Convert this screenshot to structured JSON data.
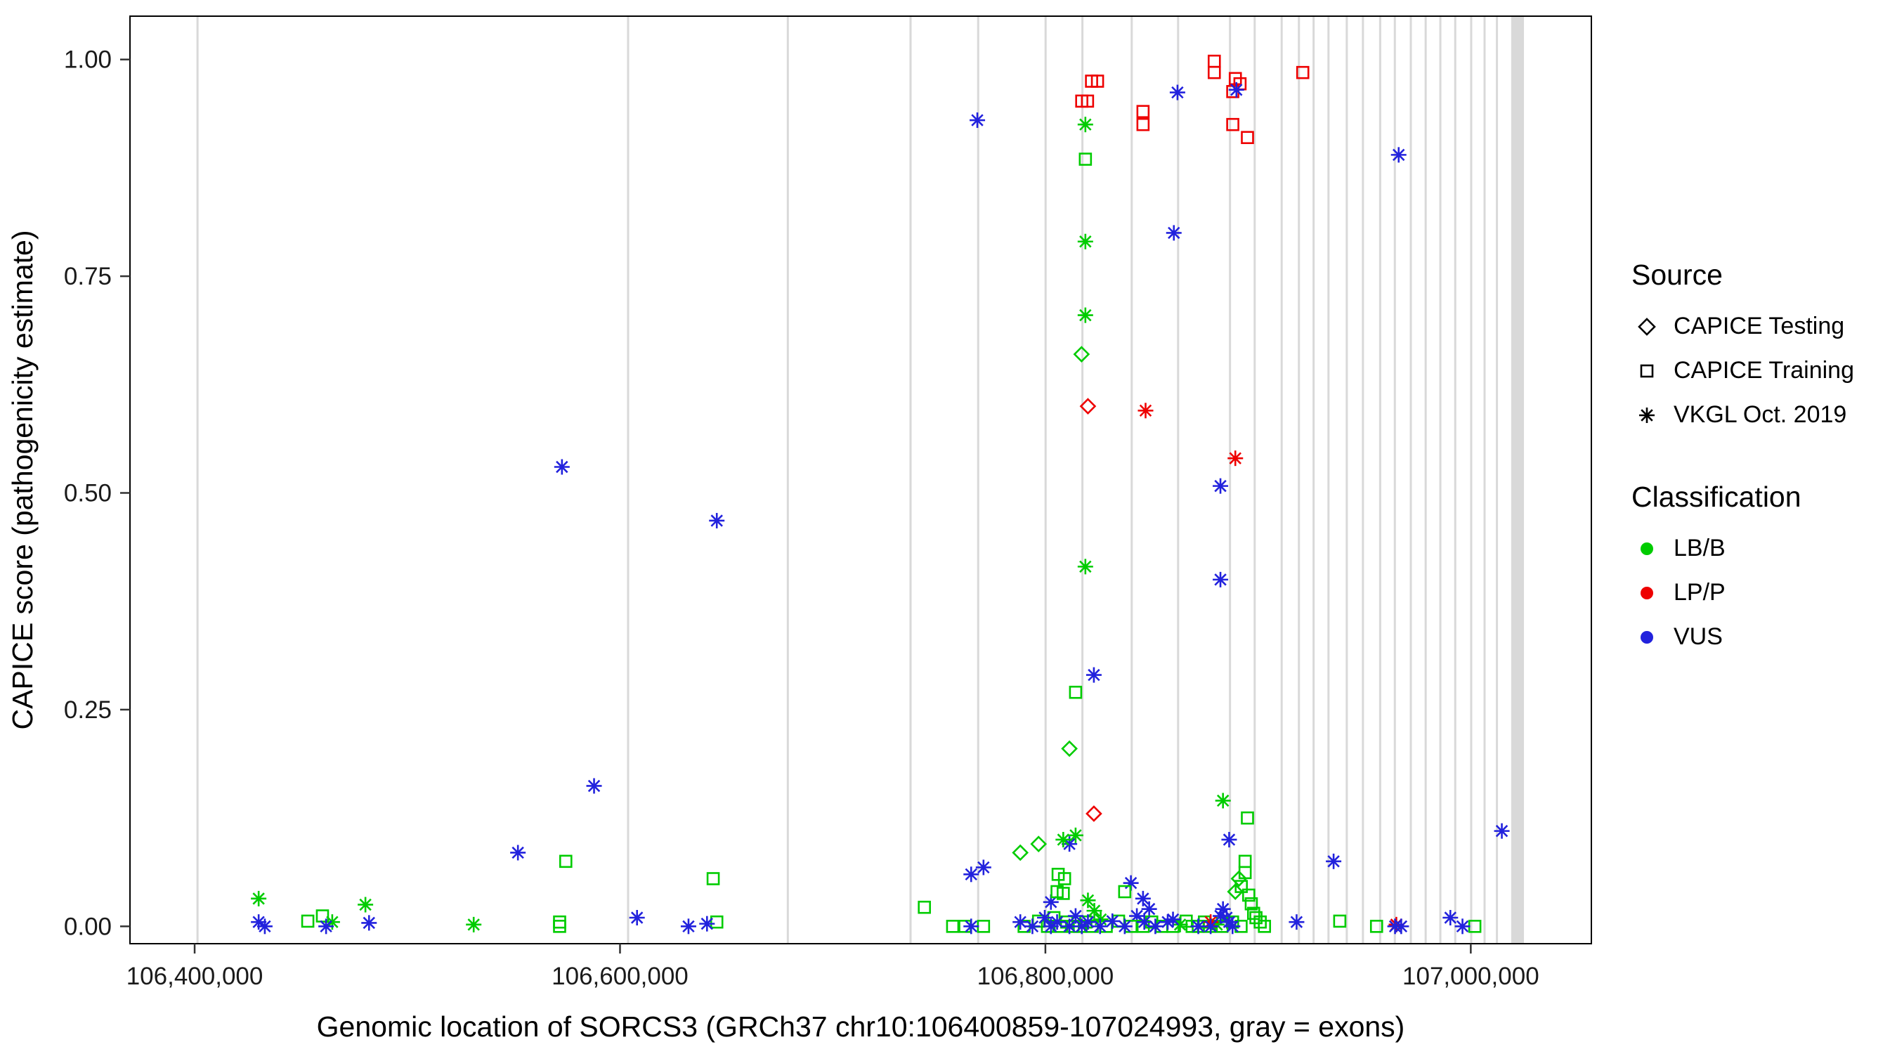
{
  "figure": {
    "xlabel": "Genomic location of SORCS3 (GRCh37 chr10:106400859-107024993, gray = exons)",
    "ylabel": "CAPICE score (pathogenicity estimate)"
  },
  "legend": {
    "source_title": "Source",
    "source_items": [
      {
        "label": "CAPICE Testing",
        "shape": "diamond"
      },
      {
        "label": "CAPICE Training",
        "shape": "square"
      },
      {
        "label": "VKGL Oct. 2019",
        "shape": "asterisk"
      }
    ],
    "classification_title": "Classification",
    "classification_items": [
      {
        "label": "LB/B",
        "color": "#00CC00"
      },
      {
        "label": "LP/P",
        "color": "#EE0000"
      },
      {
        "label": "VUS",
        "color": "#2222DD"
      }
    ]
  },
  "chart_data": {
    "type": "scatter",
    "title": "",
    "xlabel": "Genomic location of SORCS3 (GRCh37 chr10:106400859-107024993, gray = exons)",
    "ylabel": "CAPICE score (pathogenicity estimate)",
    "xlim": [
      106369600,
      107056700
    ],
    "ylim": [
      -0.02,
      1.05
    ],
    "x_ticks": [
      {
        "value": 106400000,
        "label": "106,400,000"
      },
      {
        "value": 106600000,
        "label": "106,600,000"
      },
      {
        "value": 106800000,
        "label": "106,800,000"
      },
      {
        "value": 107000000,
        "label": "107,000,000"
      }
    ],
    "y_ticks": [
      {
        "value": 0.0,
        "label": "0.00"
      },
      {
        "value": 0.25,
        "label": "0.25"
      },
      {
        "value": 0.5,
        "label": "0.50"
      },
      {
        "value": 0.75,
        "label": "0.75"
      },
      {
        "value": 1.0,
        "label": "1.00"
      }
    ],
    "exon_color": "#d9d9d9",
    "exons": [
      [
        106400859,
        106401200
      ],
      [
        106603300,
        106603600
      ],
      [
        106678400,
        106678600
      ],
      [
        106736100,
        106736400
      ],
      [
        106767900,
        106768200
      ],
      [
        106799600,
        106799900
      ],
      [
        106816900,
        106817200
      ],
      [
        106840100,
        106840400
      ],
      [
        106861900,
        106862200
      ],
      [
        106886300,
        106886600
      ],
      [
        106897900,
        106898200
      ],
      [
        106910600,
        106910900
      ],
      [
        106918700,
        106919000
      ],
      [
        106925600,
        106925900
      ],
      [
        106932600,
        106932900
      ],
      [
        106941200,
        106941500
      ],
      [
        106948800,
        106949100
      ],
      [
        106956900,
        106957200
      ],
      [
        106963800,
        106964100
      ],
      [
        106971300,
        106971600
      ],
      [
        106978300,
        106978600
      ],
      [
        106985200,
        106985500
      ],
      [
        106992200,
        106992500
      ],
      [
        106999700,
        107000000
      ],
      [
        107006000,
        107006300
      ],
      [
        107011800,
        107012100
      ],
      [
        107019000,
        107024993
      ]
    ],
    "source_names": {
      "T": "CAPICE Testing",
      "R": "CAPICE Training",
      "V": "VKGL Oct. 2019"
    },
    "source_shapes": {
      "T": "diamond",
      "R": "square",
      "V": "asterisk"
    },
    "class_names": {
      "B": "LB/B",
      "P": "LP/P",
      "U": "VUS"
    },
    "class_colors": {
      "B": "#00CC00",
      "P": "#EE0000",
      "U": "#2222DD"
    },
    "point_format": [
      "x_genomic",
      "capice_score",
      "source_code",
      "class_code"
    ],
    "points": [
      [
        106821700,
        0.975,
        "R",
        "P"
      ],
      [
        106824500,
        0.975,
        "R",
        "P"
      ],
      [
        106817100,
        0.952,
        "R",
        "P"
      ],
      [
        106819800,
        0.952,
        "R",
        "P"
      ],
      [
        106845900,
        0.94,
        "R",
        "P"
      ],
      [
        106845900,
        0.925,
        "R",
        "P"
      ],
      [
        106879400,
        0.998,
        "R",
        "P"
      ],
      [
        106879400,
        0.985,
        "R",
        "P"
      ],
      [
        106889300,
        0.978,
        "R",
        "P"
      ],
      [
        106891500,
        0.972,
        "R",
        "P"
      ],
      [
        106888100,
        0.963,
        "R",
        "P"
      ],
      [
        106888100,
        0.925,
        "R",
        "P"
      ],
      [
        106895000,
        0.91,
        "R",
        "P"
      ],
      [
        106921000,
        0.985,
        "R",
        "P"
      ],
      [
        106768000,
        0.93,
        "V",
        "U"
      ],
      [
        106862100,
        0.962,
        "V",
        "U"
      ],
      [
        106889800,
        0.965,
        "V",
        "U"
      ],
      [
        106966100,
        0.89,
        "V",
        "U"
      ],
      [
        106860400,
        0.8,
        "V",
        "U"
      ],
      [
        106572700,
        0.53,
        "V",
        "U"
      ],
      [
        106645500,
        0.468,
        "V",
        "U"
      ],
      [
        106882300,
        0.508,
        "V",
        "U"
      ],
      [
        106882300,
        0.4,
        "V",
        "U"
      ],
      [
        106822800,
        0.29,
        "V",
        "U"
      ],
      [
        106587800,
        0.162,
        "V",
        "U"
      ],
      [
        106552000,
        0.085,
        "V",
        "U"
      ],
      [
        107014600,
        0.11,
        "V",
        "U"
      ],
      [
        106886400,
        0.1,
        "V",
        "U"
      ],
      [
        106935500,
        0.075,
        "V",
        "U"
      ],
      [
        106770900,
        0.068,
        "V",
        "U"
      ],
      [
        106765100,
        0.06,
        "V",
        "U"
      ],
      [
        106811300,
        0.095,
        "V",
        "U"
      ],
      [
        106840200,
        0.05,
        "V",
        "U"
      ],
      [
        106845900,
        0.032,
        "V",
        "U"
      ],
      [
        106848800,
        0.02,
        "V",
        "U"
      ],
      [
        106843000,
        0.012,
        "V",
        "U"
      ],
      [
        106802600,
        0.028,
        "V",
        "U"
      ],
      [
        106883500,
        0.02,
        "V",
        "U"
      ],
      [
        106885200,
        0.01,
        "V",
        "U"
      ],
      [
        106818800,
        0.925,
        "V",
        "B"
      ],
      [
        106818800,
        0.79,
        "V",
        "B"
      ],
      [
        106818800,
        0.705,
        "V",
        "B"
      ],
      [
        106818800,
        0.415,
        "V",
        "B"
      ],
      [
        106883500,
        0.145,
        "V",
        "B"
      ],
      [
        106814200,
        0.105,
        "V",
        "B"
      ],
      [
        106808400,
        0.1,
        "V",
        "B"
      ],
      [
        106430100,
        0.032,
        "V",
        "B"
      ],
      [
        106480300,
        0.025,
        "V",
        "B"
      ],
      [
        106531200,
        0.002,
        "V",
        "B"
      ],
      [
        106820000,
        0.03,
        "V",
        "B"
      ],
      [
        106823000,
        0.018,
        "V",
        "B"
      ],
      [
        106826000,
        0.008,
        "V",
        "B"
      ],
      [
        106863300,
        0.002,
        "V",
        "B"
      ],
      [
        106880600,
        0.002,
        "V",
        "B"
      ],
      [
        106464700,
        0.005,
        "V",
        "B"
      ],
      [
        106818800,
        0.885,
        "R",
        "B"
      ],
      [
        106814200,
        0.27,
        "R",
        "B"
      ],
      [
        106895000,
        0.125,
        "R",
        "B"
      ],
      [
        106574500,
        0.075,
        "R",
        "B"
      ],
      [
        106643800,
        0.055,
        "R",
        "B"
      ],
      [
        106893900,
        0.075,
        "R",
        "B"
      ],
      [
        106893900,
        0.062,
        "R",
        "B"
      ],
      [
        106892100,
        0.046,
        "R",
        "B"
      ],
      [
        106895600,
        0.036,
        "R",
        "B"
      ],
      [
        106896800,
        0.026,
        "R",
        "B"
      ],
      [
        106897900,
        0.015,
        "R",
        "B"
      ],
      [
        106806000,
        0.06,
        "R",
        "B"
      ],
      [
        106809000,
        0.055,
        "R",
        "B"
      ],
      [
        106805500,
        0.04,
        "R",
        "B"
      ],
      [
        106808400,
        0.038,
        "R",
        "B"
      ],
      [
        106837300,
        0.04,
        "R",
        "B"
      ],
      [
        106453200,
        0.006,
        "R",
        "B"
      ],
      [
        106460100,
        0.012,
        "R",
        "B"
      ],
      [
        106571600,
        0.005,
        "R",
        "B"
      ],
      [
        106571600,
        0.0,
        "R",
        "B"
      ],
      [
        106645500,
        0.005,
        "R",
        "B"
      ],
      [
        106743100,
        0.022,
        "R",
        "B"
      ],
      [
        106756400,
        0.0,
        "R",
        "B"
      ],
      [
        106762200,
        0.0,
        "R",
        "B"
      ],
      [
        106770900,
        0.0,
        "R",
        "B"
      ],
      [
        106790000,
        0.0,
        "R",
        "B"
      ],
      [
        106796800,
        0.006,
        "R",
        "B"
      ],
      [
        106801000,
        0.0,
        "R",
        "B"
      ],
      [
        106804000,
        0.01,
        "R",
        "B"
      ],
      [
        106807000,
        0.0,
        "R",
        "B"
      ],
      [
        106810000,
        0.005,
        "R",
        "B"
      ],
      [
        106813000,
        0.0,
        "R",
        "B"
      ],
      [
        106816000,
        0.0,
        "R",
        "B"
      ],
      [
        106819000,
        0.005,
        "R",
        "B"
      ],
      [
        106822000,
        0.0,
        "R",
        "B"
      ],
      [
        106828600,
        0.0,
        "R",
        "B"
      ],
      [
        106834400,
        0.006,
        "R",
        "B"
      ],
      [
        106840200,
        0.0,
        "R",
        "B"
      ],
      [
        106846000,
        0.0,
        "R",
        "B"
      ],
      [
        106850000,
        0.005,
        "R",
        "B"
      ],
      [
        106854600,
        0.0,
        "R",
        "B"
      ],
      [
        106860000,
        0.0,
        "R",
        "B"
      ],
      [
        106866200,
        0.006,
        "R",
        "B"
      ],
      [
        106869000,
        0.0,
        "R",
        "B"
      ],
      [
        106871900,
        0.0,
        "R",
        "B"
      ],
      [
        106874800,
        0.005,
        "R",
        "B"
      ],
      [
        106877000,
        0.0,
        "R",
        "B"
      ],
      [
        106883000,
        0.0,
        "R",
        "B"
      ],
      [
        106888000,
        0.005,
        "R",
        "B"
      ],
      [
        106892000,
        0.0,
        "R",
        "B"
      ],
      [
        106899000,
        0.01,
        "R",
        "B"
      ],
      [
        106901000,
        0.005,
        "R",
        "B"
      ],
      [
        106903000,
        0.0,
        "R",
        "B"
      ],
      [
        106938400,
        0.006,
        "R",
        "B"
      ],
      [
        106955700,
        0.0,
        "R",
        "B"
      ],
      [
        107001900,
        0.0,
        "R",
        "B"
      ],
      [
        106817000,
        0.66,
        "T",
        "B"
      ],
      [
        106811300,
        0.205,
        "T",
        "B"
      ],
      [
        106796800,
        0.095,
        "T",
        "B"
      ],
      [
        106891000,
        0.055,
        "T",
        "B"
      ],
      [
        106889300,
        0.04,
        "T",
        "B"
      ],
      [
        106788200,
        0.085,
        "T",
        "B"
      ],
      [
        106820000,
        0.6,
        "T",
        "P"
      ],
      [
        106822800,
        0.13,
        "T",
        "P"
      ],
      [
        106847100,
        0.595,
        "V",
        "P"
      ],
      [
        106889300,
        0.54,
        "V",
        "P"
      ],
      [
        106877700,
        0.005,
        "V",
        "P"
      ],
      [
        106965000,
        0.002,
        "V",
        "P"
      ],
      [
        106430100,
        0.005,
        "V",
        "U"
      ],
      [
        106433000,
        0.0,
        "V",
        "U"
      ],
      [
        106461800,
        0.0,
        "V",
        "U"
      ],
      [
        106482000,
        0.004,
        "V",
        "U"
      ],
      [
        106608000,
        0.01,
        "V",
        "U"
      ],
      [
        106632200,
        0.0,
        "V",
        "U"
      ],
      [
        106640900,
        0.003,
        "V",
        "U"
      ],
      [
        106765100,
        0.0,
        "V",
        "U"
      ],
      [
        106788200,
        0.005,
        "V",
        "U"
      ],
      [
        106793900,
        0.0,
        "V",
        "U"
      ],
      [
        106799700,
        0.01,
        "V",
        "U"
      ],
      [
        106802600,
        0.0,
        "V",
        "U"
      ],
      [
        106805500,
        0.005,
        "V",
        "U"
      ],
      [
        106811300,
        0.0,
        "V",
        "U"
      ],
      [
        106814200,
        0.012,
        "V",
        "U"
      ],
      [
        106817100,
        0.0,
        "V",
        "U"
      ],
      [
        106820000,
        0.005,
        "V",
        "U"
      ],
      [
        106825700,
        0.0,
        "V",
        "U"
      ],
      [
        106831500,
        0.006,
        "V",
        "U"
      ],
      [
        106837300,
        0.0,
        "V",
        "U"
      ],
      [
        106851700,
        0.0,
        "V",
        "U"
      ],
      [
        106857500,
        0.005,
        "V",
        "U"
      ],
      [
        106871900,
        0.0,
        "V",
        "U"
      ],
      [
        106877700,
        0.0,
        "V",
        "U"
      ],
      [
        106882300,
        0.012,
        "V",
        "U"
      ],
      [
        106918100,
        0.005,
        "V",
        "U"
      ],
      [
        106964400,
        0.0,
        "V",
        "U"
      ],
      [
        106967300,
        0.0,
        "V",
        "U"
      ],
      [
        106990400,
        0.01,
        "V",
        "U"
      ],
      [
        106996100,
        0.0,
        "V",
        "U"
      ],
      [
        106886400,
        0.005,
        "V",
        "U"
      ],
      [
        106888000,
        0.0,
        "V",
        "U"
      ],
      [
        106860000,
        0.008,
        "V",
        "U"
      ],
      [
        106846500,
        0.005,
        "V",
        "U"
      ]
    ]
  }
}
